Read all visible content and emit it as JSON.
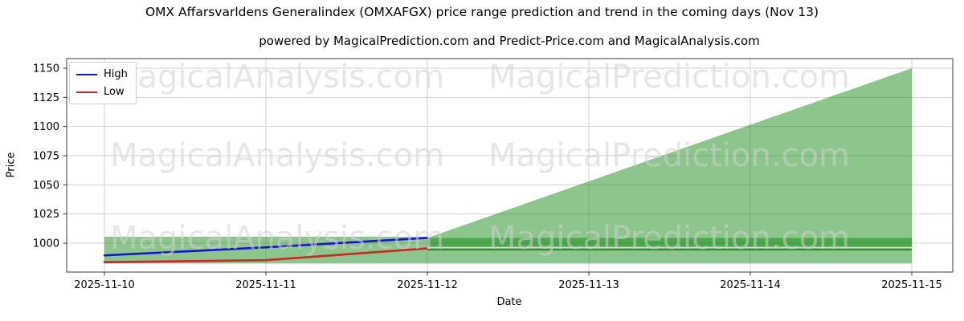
{
  "chart_data": {
    "type": "line",
    "title": "OMX Affarsvarldens Generalindex (OMXAFGX) price range prediction and trend in the coming days (Nov 13)",
    "subtitle": "powered by MagicalPrediction.com and Predict-Price.com and MagicalAnalysis.com",
    "xlabel": "Date",
    "ylabel": "Price",
    "x_ticks": [
      "2025-11-10",
      "2025-11-11",
      "2025-11-12",
      "2025-11-13",
      "2025-11-14",
      "2025-11-15"
    ],
    "y_ticks": [
      1000,
      1025,
      1050,
      1075,
      1100,
      1125,
      1150
    ],
    "ylim": [
      975,
      1158
    ],
    "grid": true,
    "legend_position": "upper-left",
    "series": [
      {
        "name": "High",
        "color": "#1414cf",
        "x": [
          "2025-11-10",
          "2025-11-11",
          "2025-11-12"
        ],
        "values": [
          989.5,
          996.4,
          1004.5
        ]
      },
      {
        "name": "Low",
        "color": "#cd2626",
        "x": [
          "2025-11-10",
          "2025-11-11",
          "2025-11-12"
        ],
        "values": [
          983.7,
          985.4,
          995.5
        ]
      }
    ],
    "range_band": {
      "x_start": "2025-11-10",
      "x_end": "2025-11-12",
      "top": 1005.5,
      "bottom": 982.5,
      "color": "#008000",
      "alpha": 0.45
    },
    "prediction_fan": {
      "x_start": "2025-11-12",
      "x_end": "2025-11-15",
      "top_start": 1004.5,
      "top_end": 1150,
      "bottom": 982.5,
      "color": "#008000",
      "alpha": 0.45
    },
    "prediction_band": {
      "x_start": "2025-11-12",
      "x_end": "2025-11-15",
      "top": 1004.5,
      "bottom": 997.0,
      "color": "#008000",
      "alpha": 0.45
    },
    "prediction_lines": [
      {
        "value": 996.0,
        "color": "#d3dfd3"
      },
      {
        "value": 994.6,
        "color": "#2e8e2e"
      }
    ],
    "watermarks": [
      "MagicalAnalysis.com",
      "MagicalPrediction.com"
    ]
  }
}
